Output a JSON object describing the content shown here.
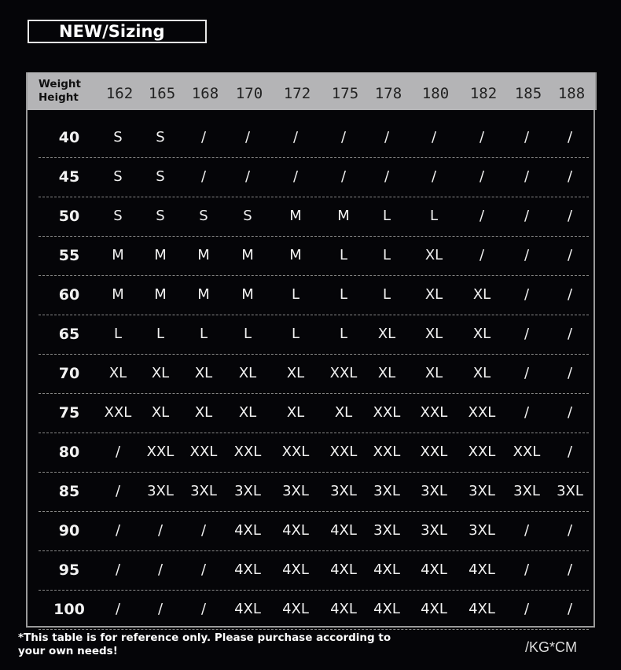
{
  "title": "NEW/Sizing",
  "table": {
    "corner_top": "Weight",
    "corner_bottom": "Height",
    "heights": [
      "162",
      "165",
      "168",
      "170",
      "172",
      "175",
      "178",
      "180",
      "182",
      "185",
      "188"
    ],
    "rows": [
      {
        "weight": "40",
        "sizes": [
          "S",
          "S",
          "/",
          "/",
          "/",
          "/",
          "/",
          "/",
          "/",
          "/",
          "/"
        ]
      },
      {
        "weight": "45",
        "sizes": [
          "S",
          "S",
          "/",
          "/",
          "/",
          "/",
          "/",
          "/",
          "/",
          "/",
          "/"
        ]
      },
      {
        "weight": "50",
        "sizes": [
          "S",
          "S",
          "S",
          "S",
          "M",
          "M",
          "L",
          "L",
          "/",
          "/",
          "/"
        ]
      },
      {
        "weight": "55",
        "sizes": [
          "M",
          "M",
          "M",
          "M",
          "M",
          "L",
          "L",
          "XL",
          "/",
          "/",
          "/"
        ]
      },
      {
        "weight": "60",
        "sizes": [
          "M",
          "M",
          "M",
          "M",
          "L",
          "L",
          "L",
          "XL",
          "XL",
          "/",
          "/"
        ]
      },
      {
        "weight": "65",
        "sizes": [
          "L",
          "L",
          "L",
          "L",
          "L",
          "L",
          "XL",
          "XL",
          "XL",
          "/",
          "/"
        ]
      },
      {
        "weight": "70",
        "sizes": [
          "XL",
          "XL",
          "XL",
          "XL",
          "XL",
          "XXL",
          "XL",
          "XL",
          "XL",
          "/",
          "/"
        ]
      },
      {
        "weight": "75",
        "sizes": [
          "XXL",
          "XL",
          "XL",
          "XL",
          "XL",
          "XL",
          "XXL",
          "XXL",
          "XXL",
          "/",
          "/"
        ]
      },
      {
        "weight": "80",
        "sizes": [
          "/",
          "XXL",
          "XXL",
          "XXL",
          "XXL",
          "XXL",
          "XXL",
          "XXL",
          "XXL",
          "XXL",
          "/"
        ]
      },
      {
        "weight": "85",
        "sizes": [
          "/",
          "3XL",
          "3XL",
          "3XL",
          "3XL",
          "3XL",
          "3XL",
          "3XL",
          "3XL",
          "3XL",
          "3XL"
        ]
      },
      {
        "weight": "90",
        "sizes": [
          "/",
          "/",
          "/",
          "4XL",
          "4XL",
          "4XL",
          "3XL",
          "3XL",
          "3XL",
          "/",
          "/"
        ]
      },
      {
        "weight": "95",
        "sizes": [
          "/",
          "/",
          "/",
          "4XL",
          "4XL",
          "4XL",
          "4XL",
          "4XL",
          "4XL",
          "/",
          "/"
        ]
      },
      {
        "weight": "100",
        "sizes": [
          "/",
          "/",
          "/",
          "4XL",
          "4XL",
          "4XL",
          "4XL",
          "4XL",
          "4XL",
          "/",
          "/"
        ]
      }
    ]
  },
  "note": "*This table is for reference only. Please purchase according to your own needs!",
  "unit": "/KG*CM"
}
